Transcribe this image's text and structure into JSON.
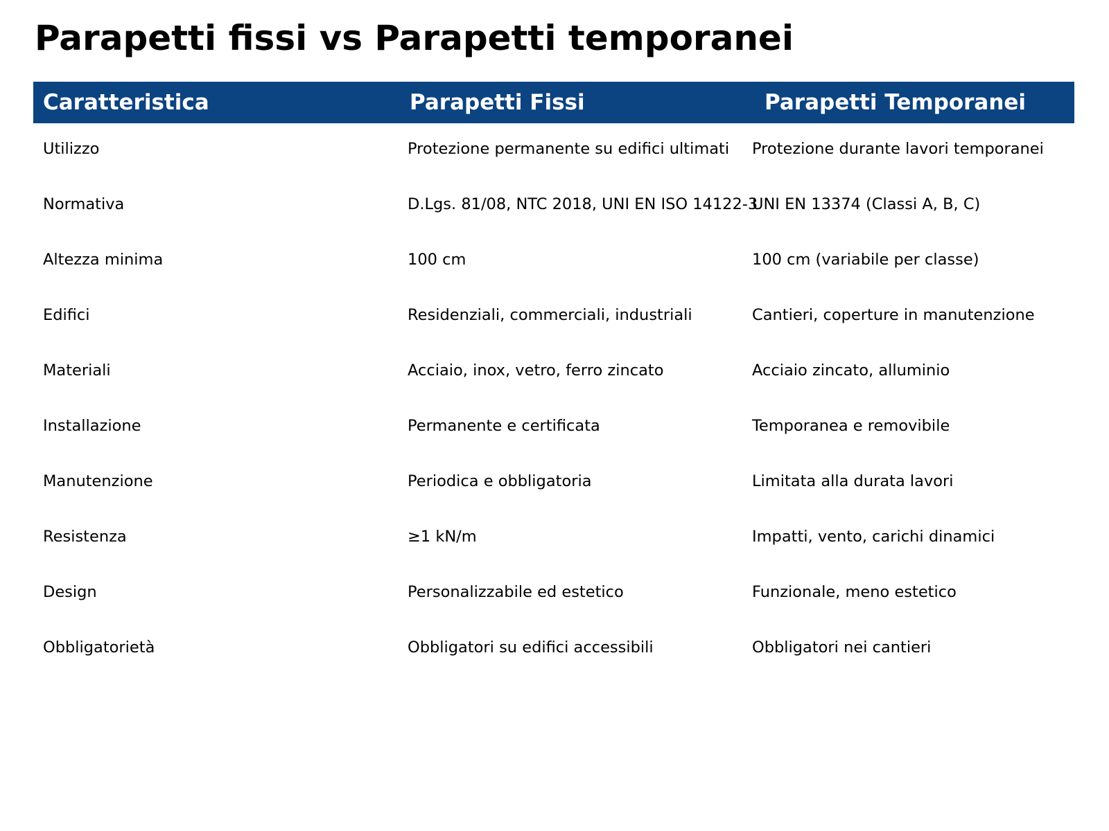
{
  "chart_data": {
    "type": "table",
    "title": "Parapetti fissi vs Parapetti temporanei",
    "columns": [
      "Caratteristica",
      "Parapetti Fissi",
      "Parapetti Temporanei"
    ],
    "rows": [
      {
        "feature": "Utilizzo",
        "fissi": "Protezione permanente su edifici ultimati",
        "temporanei": "Protezione durante lavori temporanei"
      },
      {
        "feature": "Normativa",
        "fissi": "D.Lgs. 81/08, NTC 2018, UNI EN ISO 14122-3",
        "temporanei": "UNI EN 13374 (Classi A, B, C)"
      },
      {
        "feature": "Altezza minima",
        "fissi": "100 cm",
        "temporanei": "100 cm (variabile per classe)"
      },
      {
        "feature": "Edifici",
        "fissi": "Residenziali, commerciali, industriali",
        "temporanei": "Cantieri, coperture in manutenzione"
      },
      {
        "feature": "Materiali",
        "fissi": "Acciaio, inox, vetro, ferro zincato",
        "temporanei": "Acciaio zincato, alluminio"
      },
      {
        "feature": "Installazione",
        "fissi": "Permanente e certificata",
        "temporanei": "Temporanea e removibile"
      },
      {
        "feature": "Manutenzione",
        "fissi": "Periodica e obbligatoria",
        "temporanei": "Limitata alla durata lavori"
      },
      {
        "feature": "Resistenza",
        "fissi": "≥1 kN/m",
        "temporanei": "Impatti, vento, carichi dinamici"
      },
      {
        "feature": "Design",
        "fissi": "Personalizzabile ed estetico",
        "temporanei": "Funzionale, meno estetico"
      },
      {
        "feature": "Obbligatorietà",
        "fissi": "Obbligatori su edifici accessibili",
        "temporanei": "Obbligatori nei cantieri"
      }
    ],
    "layout": {
      "legend": "none",
      "grid": "off",
      "header_bg": "#0C4381",
      "header_text_color": "#FFFFFF",
      "body_text_color": "#000000",
      "background": "#FFFFFF"
    }
  }
}
